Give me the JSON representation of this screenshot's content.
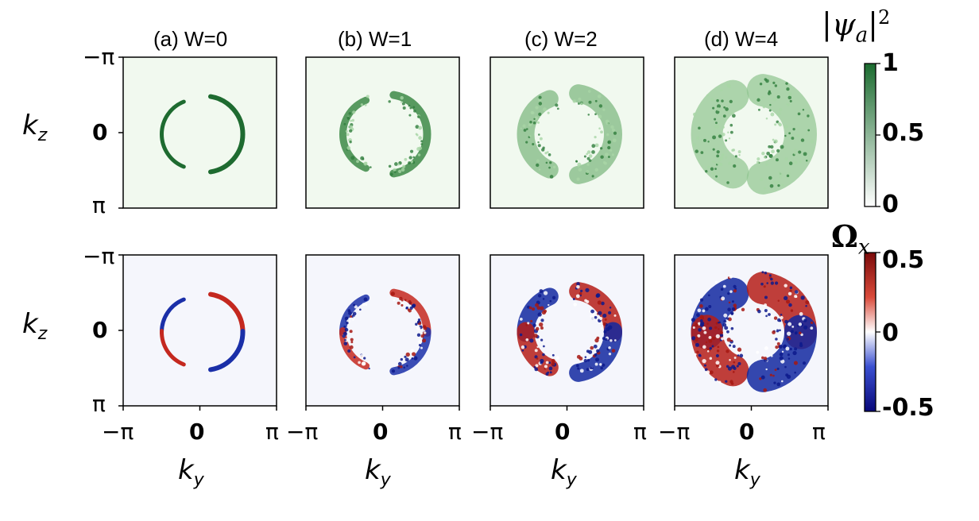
{
  "chart_data": [
    {
      "type": "heatmap",
      "rows": [
        {
          "name": "probability",
          "colorbar": {
            "title": "|ψa|²",
            "ticks": [
              "1",
              "0.5",
              "0"
            ],
            "range": [
              0,
              1
            ],
            "colors": [
              "#ffffff",
              "#1b6b2f"
            ]
          },
          "panels": [
            {
              "title": "(a) W=0",
              "disorder": 0
            },
            {
              "title": "(b) W=1",
              "disorder": 1
            },
            {
              "title": "(c) W=2",
              "disorder": 2
            },
            {
              "title": "(d) W=4",
              "disorder": 4
            }
          ]
        },
        {
          "name": "berry-curvature",
          "colorbar": {
            "title": "Ωx",
            "ticks": [
              "0.5",
              "0",
              "-0.5"
            ],
            "range": [
              -0.5,
              0.5
            ],
            "colors": [
              "#08087a",
              "#ffffff",
              "#7a0a0a"
            ]
          },
          "panels": [
            {
              "title": "",
              "disorder": 0
            },
            {
              "title": "",
              "disorder": 1
            },
            {
              "title": "",
              "disorder": 2
            },
            {
              "title": "",
              "disorder": 4
            }
          ]
        }
      ],
      "xlabel": "k_y",
      "ylabel": "k_z",
      "xticks": [
        "−π",
        "0",
        "π"
      ],
      "yticks": [
        "−π",
        "0",
        "π"
      ],
      "xlim": [
        "−π",
        "π"
      ],
      "ylim": [
        "−π",
        "π"
      ]
    }
  ]
}
